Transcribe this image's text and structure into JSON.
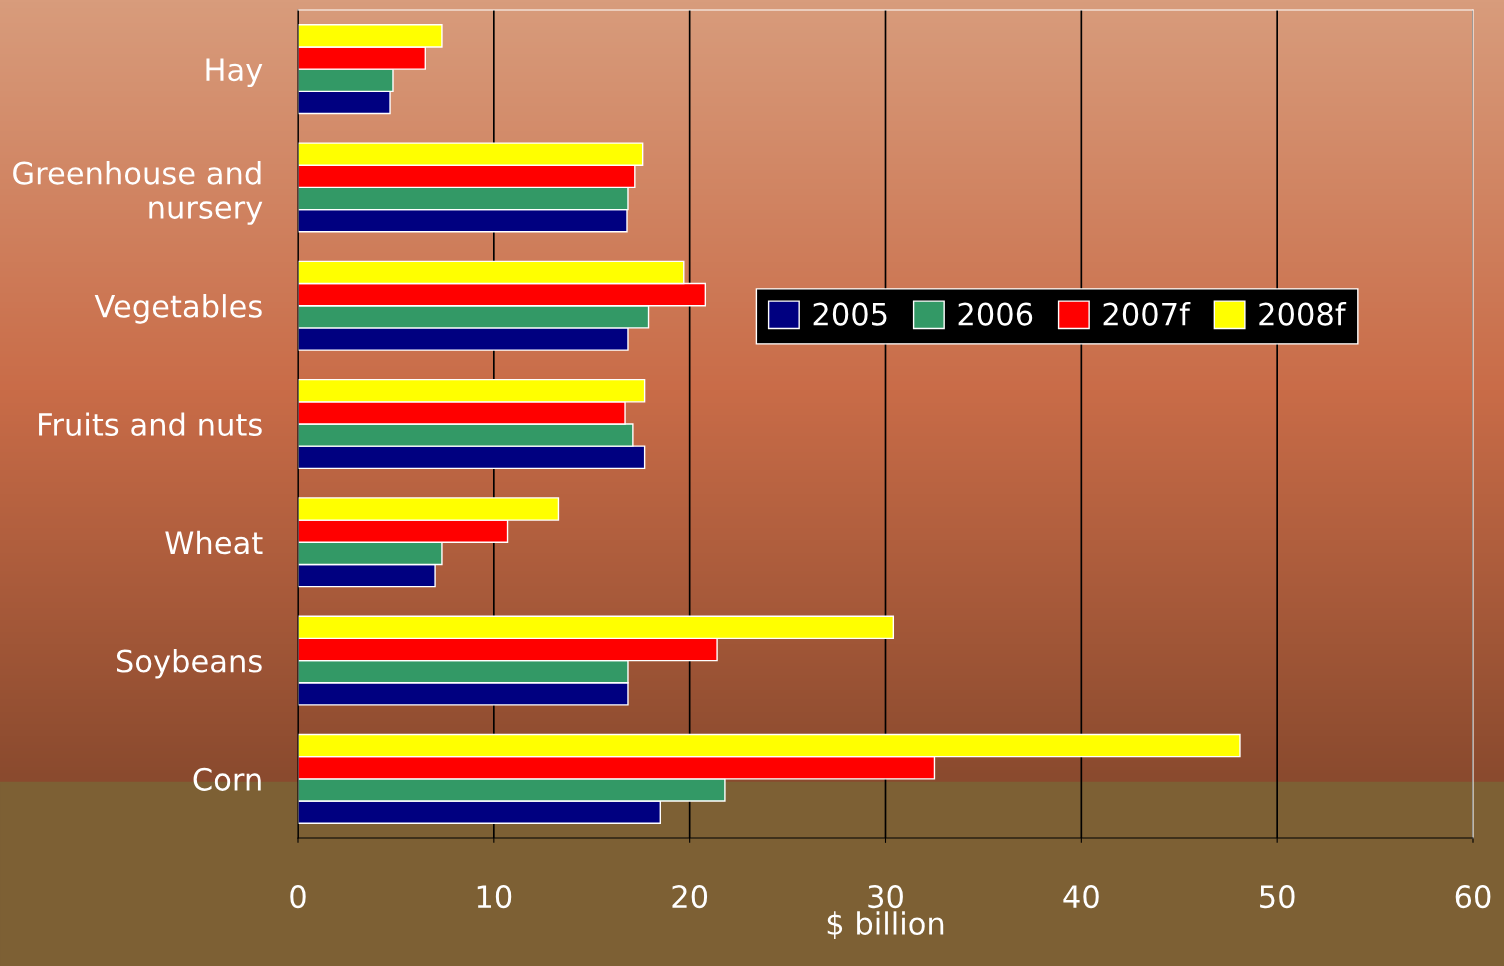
{
  "chart_data": {
    "type": "bar",
    "orientation": "horizontal",
    "xlabel": "$ billion",
    "categories": [
      "Hay",
      "Greenhouse and\nnursery",
      "Vegetables",
      "Fruits and nuts",
      "Wheat",
      "Soybeans",
      "Corn"
    ],
    "series": [
      {
        "name": "2005",
        "color": "#000080",
        "values": [
          4.7,
          16.8,
          16.85,
          17.7,
          7.0,
          16.85,
          18.5
        ]
      },
      {
        "name": "2006",
        "color": "#339966",
        "values": [
          4.85,
          16.85,
          17.9,
          17.1,
          7.35,
          16.85,
          21.8
        ]
      },
      {
        "name": "2007f",
        "color": "#ff0000",
        "values": [
          6.5,
          17.2,
          20.8,
          16.7,
          10.7,
          21.4,
          32.5
        ]
      },
      {
        "name": "2008f",
        "color": "#ffff00",
        "values": [
          7.35,
          17.6,
          19.7,
          17.7,
          13.3,
          30.4,
          48.1
        ]
      }
    ],
    "xlim": [
      0,
      60
    ],
    "xticks": [
      0,
      10,
      20,
      30,
      40,
      50,
      60
    ],
    "grid": "x",
    "legend": "right"
  }
}
